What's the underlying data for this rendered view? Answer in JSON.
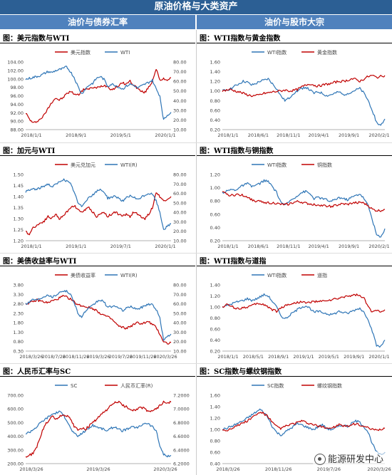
{
  "header": {
    "title": "原油价格与大类资产",
    "left_col": "油价与债券汇率",
    "right_col": "油价与股市大宗"
  },
  "watermark": "能源研发中心",
  "chart_data": [
    {
      "id": "c1",
      "type": "line",
      "title": "图：美元指数与WTI",
      "x_ticks": [
        "2018/1/1",
        "2018/9/1",
        "2019/5/1",
        "2020/1/1"
      ],
      "y_left": {
        "ticks": [
          "104.00",
          "102.00",
          "100.00",
          "98.00",
          "96.00",
          "94.00",
          "92.00",
          "90.00",
          "88.00"
        ],
        "min": 88,
        "max": 104
      },
      "y_right": {
        "ticks": [
          "80.00",
          "70.00",
          "60.00",
          "50.00",
          "40.00",
          "30.00",
          "20.00",
          "10.00"
        ],
        "min": 10,
        "max": 80
      },
      "series": [
        {
          "name": "美元指数",
          "color": "#c00000",
          "axis": "left",
          "values": [
            92,
            90.5,
            89.5,
            90,
            90.5,
            91.5,
            93,
            94.5,
            95.5,
            95,
            95.5,
            96.5,
            97,
            96.5,
            96.2,
            97,
            97.8,
            97.5,
            98,
            97.8,
            98.2,
            98.5,
            98.2,
            97.5,
            97.8,
            98.5,
            99,
            98.8,
            99.5,
            98.5,
            97.8,
            97,
            96.8,
            98,
            99.5,
            102.5,
            99.5,
            100,
            99.8,
            100.3
          ]
        },
        {
          "name": "WTI",
          "color": "#2e75b6",
          "axis": "right",
          "values": [
            62,
            63,
            64,
            65,
            66,
            68,
            70,
            69,
            71,
            72,
            73,
            75,
            70,
            64,
            55,
            47,
            52,
            56,
            58,
            63,
            65,
            62,
            55,
            57,
            56,
            54,
            52,
            55,
            57,
            56,
            53,
            55,
            57,
            59,
            61,
            52,
            45,
            20,
            25,
            28
          ]
        }
      ]
    },
    {
      "id": "c2",
      "type": "line",
      "title": "图：WTI指数与黄金指数",
      "x_ticks": [
        "2018/1/1",
        "2018/6/1",
        "2018/11/1",
        "2019/4/1",
        "2019/9/1",
        "2020/2/1"
      ],
      "y_left": {
        "ticks": [
          "1.60",
          "1.40",
          "1.20",
          "1.00",
          "0.80",
          "0.60",
          "0.40",
          "0.20"
        ],
        "min": 0.2,
        "max": 1.6
      },
      "series": [
        {
          "name": "WTI指数",
          "color": "#2e75b6",
          "axis": "left",
          "values": [
            1.0,
            1.02,
            1.05,
            1.1,
            1.15,
            1.2,
            1.18,
            1.12,
            1.15,
            1.2,
            1.22,
            1.25,
            1.15,
            1.05,
            0.9,
            0.8,
            0.85,
            0.95,
            1.0,
            1.05,
            1.08,
            1.02,
            0.95,
            0.98,
            0.95,
            0.9,
            0.92,
            0.95,
            0.98,
            0.92,
            0.95,
            0.98,
            1.02,
            1.05,
            0.95,
            0.8,
            0.6,
            0.35,
            0.28,
            0.42
          ]
        },
        {
          "name": "黄金指数",
          "color": "#c00000",
          "axis": "left",
          "values": [
            1.0,
            1.02,
            1.03,
            1.0,
            0.98,
            0.95,
            0.92,
            0.9,
            0.9,
            0.92,
            0.95,
            0.96,
            0.98,
            0.99,
            1.0,
            1.02,
            1.0,
            1.01,
            1.03,
            1.08,
            1.12,
            1.15,
            1.12,
            1.1,
            1.12,
            1.14,
            1.15,
            1.18,
            1.2,
            1.2,
            1.22,
            1.25,
            1.24,
            1.2,
            1.25,
            1.3,
            1.32,
            1.28,
            1.3,
            1.32
          ]
        }
      ]
    },
    {
      "id": "c3",
      "type": "line",
      "title": "图：加元与WTI",
      "x_ticks": [
        "2018/1/1",
        "2019/1/1",
        "2019/7/1",
        "2020/1/1"
      ],
      "y_left": {
        "ticks": [
          "1.50",
          "1.45",
          "1.40",
          "1.35",
          "1.30",
          "1.25",
          "1.20"
        ],
        "min": 1.2,
        "max": 1.5
      },
      "y_right": {
        "ticks": [
          "80.00",
          "70.00",
          "60.00",
          "50.00",
          "40.00",
          "30.00",
          "20.00",
          "10.00"
        ],
        "min": 10,
        "max": 80
      },
      "series": [
        {
          "name": "美元兑加元",
          "color": "#c00000",
          "axis": "left",
          "values": [
            1.24,
            1.23,
            1.26,
            1.27,
            1.28,
            1.29,
            1.31,
            1.3,
            1.32,
            1.3,
            1.31,
            1.33,
            1.35,
            1.36,
            1.34,
            1.33,
            1.34,
            1.35,
            1.33,
            1.31,
            1.32,
            1.33,
            1.31,
            1.32,
            1.33,
            1.32,
            1.31,
            1.32,
            1.31,
            1.33,
            1.32,
            1.31,
            1.3,
            1.32,
            1.35,
            1.42,
            1.4,
            1.38,
            1.39,
            1.4
          ]
        },
        {
          "name": "WTI(R)",
          "color": "#2e75b6",
          "axis": "right",
          "values": [
            62,
            63,
            65,
            64,
            66,
            68,
            70,
            67,
            69,
            72,
            75,
            73,
            70,
            62,
            50,
            46,
            52,
            56,
            58,
            62,
            64,
            62,
            55,
            56,
            57,
            55,
            52,
            55,
            57,
            56,
            53,
            56,
            58,
            60,
            59,
            52,
            40,
            22,
            25,
            28
          ]
        }
      ]
    },
    {
      "id": "c4",
      "type": "line",
      "title": "图：WTI指数与铜指数",
      "x_ticks": [
        "2018/1/1",
        "2018/6/1",
        "2018/11/1",
        "2019/4/1",
        "2019/9/1",
        "2020/2/1"
      ],
      "y_left": {
        "ticks": [
          "1.20",
          "1.00",
          "0.80",
          "0.60",
          "0.40",
          "0.20"
        ],
        "min": 0.2,
        "max": 1.3
      },
      "series": [
        {
          "name": "WTI指数",
          "color": "#2e75b6",
          "axis": "left",
          "values": [
            1.0,
            1.02,
            1.05,
            1.04,
            1.08,
            1.12,
            1.15,
            1.1,
            1.12,
            1.15,
            1.2,
            1.18,
            1.1,
            1.0,
            0.85,
            0.78,
            0.85,
            0.9,
            0.95,
            1.0,
            1.02,
            0.98,
            0.9,
            0.92,
            0.9,
            0.88,
            0.85,
            0.88,
            0.92,
            0.9,
            0.88,
            0.92,
            0.95,
            0.98,
            0.9,
            0.78,
            0.55,
            0.3,
            0.25,
            0.4
          ]
        },
        {
          "name": "铜指数",
          "color": "#c00000",
          "axis": "left",
          "values": [
            1.0,
            0.98,
            0.95,
            0.96,
            0.97,
            0.95,
            0.93,
            0.88,
            0.86,
            0.85,
            0.84,
            0.83,
            0.83,
            0.82,
            0.8,
            0.8,
            0.81,
            0.83,
            0.85,
            0.84,
            0.82,
            0.81,
            0.8,
            0.8,
            0.78,
            0.78,
            0.77,
            0.78,
            0.8,
            0.81,
            0.8,
            0.82,
            0.83,
            0.84,
            0.82,
            0.78,
            0.72,
            0.7,
            0.7,
            0.72
          ]
        }
      ]
    },
    {
      "id": "c5",
      "type": "line",
      "title": "图：美债收益率与WTI",
      "x_ticks": [
        "2018/3/26",
        "2018/7/26",
        "2018/11/26",
        "2019/3/26",
        "2019/7/26",
        "2019/11/26",
        "2020/3/26"
      ],
      "y_left": {
        "ticks": [
          "3.80",
          "3.30",
          "2.80",
          "2.30",
          "1.80",
          "1.30",
          "0.80",
          "0.30"
        ],
        "min": 0.3,
        "max": 3.8
      },
      "y_right": {
        "ticks": [
          "80.00",
          "70.00",
          "60.00",
          "50.00",
          "40.00",
          "30.00",
          "20.00",
          "10.00"
        ],
        "min": 10,
        "max": 80
      },
      "series": [
        {
          "name": "美债收益率",
          "color": "#c00000",
          "axis": "left",
          "values": [
            2.8,
            2.85,
            2.9,
            3.0,
            2.95,
            2.9,
            2.85,
            2.95,
            3.0,
            3.1,
            3.2,
            3.15,
            3.05,
            2.9,
            2.75,
            2.7,
            2.65,
            2.6,
            2.55,
            2.45,
            2.3,
            2.2,
            2.1,
            2.0,
            1.8,
            1.6,
            1.55,
            1.5,
            1.6,
            1.7,
            1.8,
            1.75,
            1.8,
            1.85,
            1.7,
            1.55,
            1.2,
            0.8,
            0.7,
            0.75
          ]
        },
        {
          "name": "WTI(R)",
          "color": "#2e75b6",
          "axis": "right",
          "values": [
            60,
            62,
            65,
            64,
            66,
            68,
            70,
            67,
            69,
            72,
            74,
            73,
            70,
            62,
            50,
            46,
            52,
            55,
            58,
            62,
            64,
            62,
            56,
            57,
            58,
            55,
            53,
            55,
            57,
            56,
            54,
            56,
            58,
            60,
            59,
            54,
            45,
            22,
            25,
            28
          ]
        }
      ]
    },
    {
      "id": "c6",
      "type": "line",
      "title": "图：WTI指数与道指",
      "x_ticks": [
        "2018/1/1",
        "2018/5/1",
        "2018/9/1",
        "2019/1/1",
        "2019/5/1",
        "2019/9/1",
        "2020/1/1"
      ],
      "y_left": {
        "ticks": [
          "1.40",
          "1.20",
          "1.00",
          "0.80",
          "0.60",
          "0.40",
          "0.20"
        ],
        "min": 0.2,
        "max": 1.4
      },
      "series": [
        {
          "name": "WTI指数",
          "color": "#2e75b6",
          "axis": "left",
          "values": [
            1.0,
            1.02,
            1.05,
            1.08,
            1.1,
            1.12,
            1.15,
            1.12,
            1.14,
            1.18,
            1.22,
            1.2,
            1.1,
            1.0,
            0.85,
            0.78,
            0.84,
            0.9,
            0.95,
            1.0,
            1.02,
            0.98,
            0.9,
            0.92,
            0.9,
            0.88,
            0.86,
            0.88,
            0.92,
            0.9,
            0.88,
            0.92,
            0.95,
            0.98,
            0.9,
            0.78,
            0.55,
            0.3,
            0.28,
            0.4
          ]
        },
        {
          "name": "道指",
          "color": "#c00000",
          "axis": "left",
          "values": [
            1.0,
            1.04,
            1.02,
            0.98,
            0.97,
            0.99,
            1.0,
            1.02,
            1.05,
            1.06,
            1.04,
            1.0,
            0.95,
            0.92,
            0.98,
            1.02,
            1.05,
            1.06,
            1.08,
            1.1,
            1.07,
            1.08,
            1.1,
            1.09,
            1.1,
            1.12,
            1.12,
            1.14,
            1.15,
            1.18,
            1.2,
            1.2,
            1.22,
            1.2,
            1.15,
            1.0,
            0.9,
            0.95,
            0.92,
            0.95
          ]
        }
      ]
    },
    {
      "id": "c7",
      "type": "line",
      "title": "图：人民币汇率与SC",
      "x_ticks": [
        "2018/3/26",
        "2019/3/26",
        "2020/3/26"
      ],
      "y_left": {
        "ticks": [
          "700.00",
          "600.00",
          "500.00",
          "400.00",
          "300.00",
          "200.00"
        ],
        "min": 200,
        "max": 700
      },
      "y_right": {
        "ticks": [
          "7.2000",
          "7.0000",
          "6.8000",
          "6.6000",
          "6.4000",
          "6.2000"
        ],
        "min": 6.2,
        "max": 7.2
      },
      "series": [
        {
          "name": "SC",
          "color": "#2e75b6",
          "axis": "left",
          "values": [
            420,
            430,
            450,
            470,
            500,
            520,
            540,
            560,
            570,
            580,
            560,
            520,
            460,
            420,
            400,
            420,
            440,
            460,
            480,
            470,
            460,
            450,
            440,
            460,
            470,
            450,
            440,
            450,
            460,
            470,
            460,
            480,
            500,
            490,
            470,
            440,
            330,
            270,
            250,
            260
          ]
        },
        {
          "name": "人民币汇率(R)",
          "color": "#c00000",
          "axis": "right",
          "values": [
            6.3,
            6.32,
            6.35,
            6.45,
            6.6,
            6.75,
            6.82,
            6.9,
            6.85,
            6.88,
            6.92,
            6.9,
            6.85,
            6.75,
            6.7,
            6.72,
            6.7,
            6.75,
            6.8,
            6.85,
            6.9,
            6.95,
            7.0,
            7.05,
            7.1,
            7.1,
            7.05,
            7.03,
            7.0,
            6.98,
            7.0,
            7.02,
            7.0,
            6.95,
            6.98,
            7.0,
            7.05,
            7.1,
            7.08,
            7.1
          ]
        }
      ]
    },
    {
      "id": "c8",
      "type": "line",
      "title": "图：SC指数与螺纹钢指数",
      "x_ticks": [
        "2018/3/26",
        "2018/11/26",
        "2019/7/26",
        "2020/3/26"
      ],
      "y_left": {
        "ticks": [
          "1.60",
          "1.40",
          "1.20",
          "1.00",
          "0.80",
          "0.60",
          "0.40"
        ],
        "min": 0.4,
        "max": 1.6
      },
      "series": [
        {
          "name": "SC指数",
          "color": "#2e75b6",
          "axis": "left",
          "values": [
            1.0,
            1.02,
            1.05,
            1.08,
            1.12,
            1.15,
            1.2,
            1.25,
            1.3,
            1.35,
            1.3,
            1.2,
            1.05,
            0.95,
            0.9,
            0.95,
            1.0,
            1.05,
            1.1,
            1.08,
            1.05,
            1.02,
            1.0,
            1.05,
            1.08,
            1.02,
            1.0,
            1.02,
            1.05,
            1.08,
            1.05,
            1.1,
            1.15,
            1.12,
            1.05,
            0.95,
            0.75,
            0.6,
            0.55,
            0.6
          ]
        },
        {
          "name": "螺纹钢指数",
          "color": "#c00000",
          "axis": "left",
          "values": [
            1.0,
            0.98,
            1.02,
            1.05,
            1.08,
            1.12,
            1.15,
            1.2,
            1.25,
            1.3,
            1.28,
            1.22,
            1.12,
            1.05,
            1.02,
            1.05,
            1.08,
            1.1,
            1.12,
            1.15,
            1.12,
            1.1,
            1.08,
            1.05,
            1.05,
            1.03,
            1.02,
            1.05,
            1.08,
            1.06,
            1.05,
            1.08,
            1.1,
            1.08,
            1.05,
            1.02,
            1.0,
            0.98,
            1.0,
            1.02
          ]
        }
      ]
    }
  ]
}
